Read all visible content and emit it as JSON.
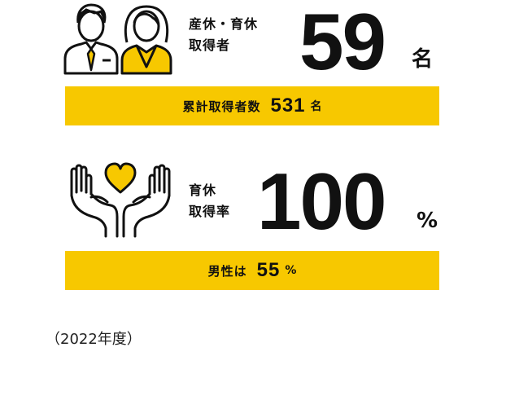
{
  "colors": {
    "accent": "#f7c800",
    "text": "#111111",
    "background": "#ffffff"
  },
  "leave_stat": {
    "icon": "parents-icon",
    "label_line1": "産休・育休",
    "label_line2": "取得者",
    "value": "59",
    "unit": "名",
    "bar": {
      "label": "累計取得者数",
      "value": "531",
      "unit": "名"
    }
  },
  "childcare_stat": {
    "icon": "heart-in-hands-icon",
    "label_line1": "育休",
    "label_line2": "取得率",
    "value": "100",
    "unit": "%",
    "bar": {
      "label": "男性は",
      "value": "55",
      "unit": "%"
    }
  },
  "footnote": "（2022年度）"
}
